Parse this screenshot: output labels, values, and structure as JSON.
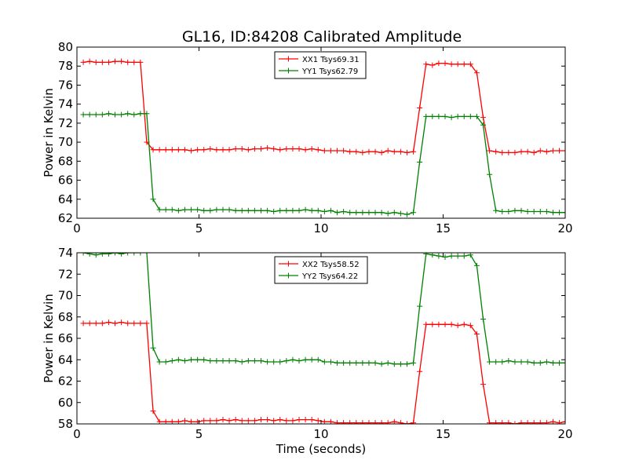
{
  "title": "GL16, ID:84208 Calibrated Amplitude",
  "colors": {
    "xx": "#ff0000",
    "yy": "#008000"
  },
  "chart_data": [
    {
      "type": "line",
      "ylabel": "Power in Kelvin",
      "xlabel": "",
      "xlim": [
        0,
        20
      ],
      "ylim": [
        62,
        80
      ],
      "xticks": [
        0,
        5,
        10,
        15,
        20
      ],
      "yticks": [
        62,
        64,
        66,
        68,
        70,
        72,
        74,
        76,
        78,
        80
      ],
      "legend_position": "top-center",
      "x": [
        0.26,
        0.52,
        0.78,
        1.04,
        1.3,
        1.56,
        1.82,
        2.08,
        2.34,
        2.6,
        2.86,
        3.12,
        3.38,
        3.64,
        3.9,
        4.16,
        4.42,
        4.68,
        4.94,
        5.2,
        5.46,
        5.72,
        5.98,
        6.24,
        6.5,
        6.76,
        7.02,
        7.28,
        7.54,
        7.8,
        8.06,
        8.32,
        8.58,
        8.84,
        9.1,
        9.36,
        9.62,
        9.88,
        10.14,
        10.4,
        10.66,
        10.92,
        11.18,
        11.44,
        11.7,
        11.96,
        12.22,
        12.48,
        12.74,
        13.0,
        13.26,
        13.52,
        13.78,
        14.04,
        14.3,
        14.56,
        14.82,
        15.08,
        15.34,
        15.6,
        15.86,
        16.12,
        16.38,
        16.64,
        16.9,
        17.16,
        17.42,
        17.68,
        17.94,
        18.2,
        18.46,
        18.72,
        18.98,
        19.24,
        19.5,
        19.76,
        20.0
      ],
      "series": [
        {
          "name": "XX1 Tsys69.31",
          "color": "#ff0000",
          "values": [
            78.4,
            78.5,
            78.4,
            78.4,
            78.4,
            78.5,
            78.5,
            78.4,
            78.4,
            78.4,
            70.0,
            69.2,
            69.2,
            69.2,
            69.2,
            69.2,
            69.2,
            69.1,
            69.2,
            69.2,
            69.3,
            69.2,
            69.2,
            69.2,
            69.3,
            69.3,
            69.2,
            69.3,
            69.3,
            69.4,
            69.3,
            69.2,
            69.3,
            69.3,
            69.3,
            69.2,
            69.3,
            69.2,
            69.1,
            69.1,
            69.1,
            69.1,
            69.0,
            69.0,
            68.9,
            69.0,
            69.0,
            68.9,
            69.1,
            69.0,
            69.0,
            68.9,
            69.0,
            73.6,
            78.2,
            78.1,
            78.3,
            78.3,
            78.2,
            78.2,
            78.2,
            78.2,
            77.3,
            72.6,
            69.1,
            69.0,
            68.9,
            68.9,
            68.9,
            69.0,
            69.0,
            68.9,
            69.1,
            69.0,
            69.1,
            69.1,
            69.1
          ]
        },
        {
          "name": "YY1 Tsys62.79",
          "color": "#008000",
          "values": [
            72.9,
            72.9,
            72.9,
            72.9,
            73.0,
            72.9,
            72.9,
            73.0,
            72.9,
            73.0,
            73.0,
            64.0,
            62.9,
            62.9,
            62.9,
            62.8,
            62.9,
            62.9,
            62.9,
            62.8,
            62.8,
            62.9,
            62.9,
            62.9,
            62.8,
            62.8,
            62.8,
            62.8,
            62.8,
            62.8,
            62.7,
            62.8,
            62.8,
            62.8,
            62.8,
            62.9,
            62.8,
            62.8,
            62.7,
            62.8,
            62.6,
            62.7,
            62.6,
            62.6,
            62.6,
            62.6,
            62.6,
            62.6,
            62.5,
            62.6,
            62.5,
            62.4,
            62.6,
            67.9,
            72.7,
            72.7,
            72.7,
            72.7,
            72.6,
            72.7,
            72.7,
            72.7,
            72.7,
            71.8,
            66.6,
            62.8,
            62.7,
            62.7,
            62.8,
            62.8,
            62.7,
            62.7,
            62.7,
            62.7,
            62.6,
            62.6,
            62.6
          ]
        }
      ]
    },
    {
      "type": "line",
      "ylabel": "Power in Kelvin",
      "xlabel": "Time (seconds)",
      "xlim": [
        0,
        20
      ],
      "ylim": [
        58,
        74
      ],
      "xticks": [
        0,
        5,
        10,
        15,
        20
      ],
      "yticks": [
        58,
        60,
        62,
        64,
        66,
        68,
        70,
        72,
        74
      ],
      "legend_position": "top-center",
      "x": [
        0.26,
        0.52,
        0.78,
        1.04,
        1.3,
        1.56,
        1.82,
        2.08,
        2.34,
        2.6,
        2.86,
        3.12,
        3.38,
        3.64,
        3.9,
        4.16,
        4.42,
        4.68,
        4.94,
        5.2,
        5.46,
        5.72,
        5.98,
        6.24,
        6.5,
        6.76,
        7.02,
        7.28,
        7.54,
        7.8,
        8.06,
        8.32,
        8.58,
        8.84,
        9.1,
        9.36,
        9.62,
        9.88,
        10.14,
        10.4,
        10.66,
        10.92,
        11.18,
        11.44,
        11.7,
        11.96,
        12.22,
        12.48,
        12.74,
        13.0,
        13.26,
        13.52,
        13.78,
        14.04,
        14.3,
        14.56,
        14.82,
        15.08,
        15.34,
        15.6,
        15.86,
        16.12,
        16.38,
        16.64,
        16.9,
        17.16,
        17.42,
        17.68,
        17.94,
        18.2,
        18.46,
        18.72,
        18.98,
        19.24,
        19.5,
        19.76,
        20.0
      ],
      "series": [
        {
          "name": "XX2 Tsys58.52",
          "color": "#ff0000",
          "values": [
            67.4,
            67.4,
            67.4,
            67.4,
            67.5,
            67.4,
            67.5,
            67.4,
            67.4,
            67.4,
            67.4,
            59.2,
            58.2,
            58.2,
            58.2,
            58.2,
            58.3,
            58.2,
            58.2,
            58.3,
            58.3,
            58.3,
            58.4,
            58.3,
            58.4,
            58.3,
            58.3,
            58.3,
            58.4,
            58.4,
            58.3,
            58.4,
            58.3,
            58.3,
            58.4,
            58.4,
            58.4,
            58.3,
            58.2,
            58.2,
            58.1,
            58.1,
            58.1,
            58.1,
            58.1,
            58.1,
            58.1,
            58.1,
            58.1,
            58.2,
            58.1,
            58.0,
            58.1,
            62.9,
            67.3,
            67.3,
            67.3,
            67.3,
            67.3,
            67.2,
            67.3,
            67.2,
            66.4,
            61.7,
            58.1,
            58.1,
            58.1,
            58.1,
            58.0,
            58.1,
            58.1,
            58.1,
            58.1,
            58.1,
            58.2,
            58.1,
            58.2
          ]
        },
        {
          "name": "YY2 Tsys64.22",
          "color": "#008000",
          "values": [
            74.0,
            73.9,
            73.8,
            73.9,
            73.9,
            74.0,
            73.9,
            74.0,
            74.0,
            74.0,
            74.1,
            65.1,
            63.8,
            63.8,
            63.9,
            64.0,
            63.9,
            64.0,
            64.0,
            64.0,
            63.9,
            63.9,
            63.9,
            63.9,
            63.9,
            63.8,
            63.9,
            63.9,
            63.9,
            63.8,
            63.8,
            63.8,
            63.9,
            64.0,
            63.9,
            64.0,
            64.0,
            64.0,
            63.8,
            63.8,
            63.7,
            63.7,
            63.7,
            63.7,
            63.7,
            63.7,
            63.7,
            63.6,
            63.7,
            63.6,
            63.6,
            63.6,
            63.7,
            69.0,
            73.9,
            73.8,
            73.7,
            73.6,
            73.7,
            73.7,
            73.7,
            73.8,
            72.8,
            67.8,
            63.8,
            63.8,
            63.8,
            63.9,
            63.8,
            63.8,
            63.8,
            63.7,
            63.7,
            63.8,
            63.7,
            63.7,
            63.7
          ]
        }
      ]
    }
  ]
}
